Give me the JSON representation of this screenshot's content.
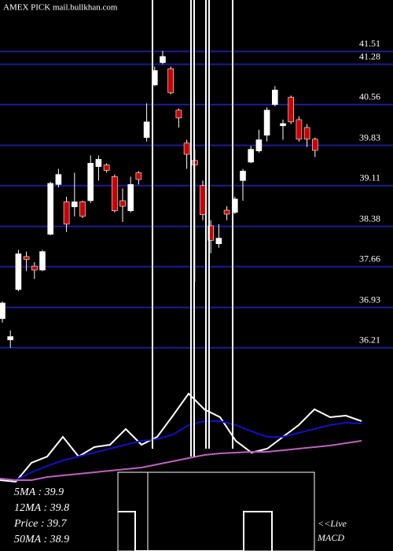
{
  "chart_data": [
    {
      "type": "candlestick",
      "title": "AMEX  PICK mail.bullkhan.com",
      "open": [
        36.73,
        36.35,
        37.25,
        37.84,
        37.67,
        37.6,
        38.24,
        39.13,
        38.82,
        38.73,
        38.82,
        38.84,
        39.45,
        39.48,
        39.27,
        38.84,
        38.66,
        39.34,
        39.97,
        40.91,
        41.31,
        41.2,
        40.46,
        39.87,
        39.56,
        39.11,
        38.39,
        38.07,
        38.67,
        38.63,
        39.2,
        39.53,
        39.73,
        40.01,
        40.56,
        40.18,
        40.69,
        40.29,
        40.15,
        39.94
      ],
      "high": [
        37.04,
        36.52,
        37.96,
        37.93,
        37.74,
        37.96,
        39.18,
        39.41,
        38.91,
        39.34,
        38.84,
        39.65,
        39.65,
        39.51,
        39.31,
        39.06,
        39.27,
        39.37,
        40.58,
        41.24,
        41.52,
        41.24,
        40.49,
        39.93,
        39.76,
        39.2,
        38.49,
        38.42,
        38.74,
        38.91,
        39.41,
        39.82,
        40.11,
        40.51,
        40.89,
        40.29,
        40.72,
        40.35,
        40.21,
        39.97
      ],
      "low": [
        36.66,
        36.21,
        37.22,
        37.58,
        37.44,
        37.58,
        38.22,
        39.08,
        38.28,
        38.56,
        38.53,
        38.8,
        39.2,
        39.34,
        38.63,
        38.46,
        38.63,
        39.13,
        39.9,
        40.89,
        41.28,
        40.74,
        40.15,
        39.41,
        37.39,
        38.49,
        37.9,
        38.0,
        38.49,
        38.6,
        38.84,
        39.51,
        39.7,
        39.9,
        40.53,
        39.93,
        40.21,
        39.9,
        39.8,
        39.62
      ],
      "close": [
        37.01,
        36.41,
        37.89,
        37.79,
        37.6,
        37.93,
        39.15,
        39.31,
        38.42,
        38.82,
        38.56,
        39.51,
        39.58,
        39.38,
        38.66,
        38.74,
        39.13,
        39.22,
        40.25,
        41.17,
        41.42,
        40.77,
        40.32,
        39.67,
        39.48,
        38.59,
        38.13,
        38.17,
        38.6,
        38.87,
        39.37,
        39.76,
        39.93,
        40.46,
        40.82,
        40.22,
        40.25,
        39.94,
        39.94,
        39.74
      ],
      "up_color": "#ffffff",
      "down_color": "#cc0000",
      "ylim": [
        35.39,
        42.43
      ],
      "yticks": [
        41.51,
        41.28,
        40.56,
        39.83,
        39.11,
        38.38,
        37.66,
        36.93,
        36.21
      ],
      "grid": true,
      "grid_color": "#1c1c96"
    },
    {
      "type": "line",
      "x": [
        0,
        20,
        40,
        60,
        80,
        100,
        120,
        140,
        160,
        180,
        200,
        220,
        240,
        260,
        280,
        300,
        320,
        340,
        360,
        380,
        400,
        420,
        440,
        460
      ],
      "xlim": [
        0,
        500
      ],
      "ylim": [
        0,
        140
      ],
      "series": [
        {
          "color": "#ffffff",
          "values": [
            10,
            8,
            32,
            40,
            65,
            40,
            52,
            55,
            75,
            55,
            65,
            92,
            120,
            100,
            90,
            60,
            45,
            50,
            65,
            80,
            100,
            90,
            92,
            85
          ]
        },
        {
          "color": "#1010c8",
          "values": [
            12,
            10,
            20,
            28,
            35,
            40,
            45,
            50,
            55,
            60,
            62,
            68,
            80,
            85,
            85,
            80,
            72,
            65,
            65,
            70,
            75,
            80,
            83,
            82
          ]
        },
        {
          "color": "#c060c0",
          "values": [
            12,
            10,
            10,
            14,
            16,
            18,
            20,
            22,
            24,
            26,
            30,
            34,
            38,
            42,
            44,
            45,
            46,
            46,
            48,
            50,
            52,
            54,
            57,
            60
          ]
        }
      ],
      "legend": [
        "5MA : 39.9",
        "12MA : 39.8",
        "Price  : 39.7",
        "50MA : 38.9"
      ],
      "annotations": [
        "<<Live",
        "MACD"
      ]
    }
  ]
}
